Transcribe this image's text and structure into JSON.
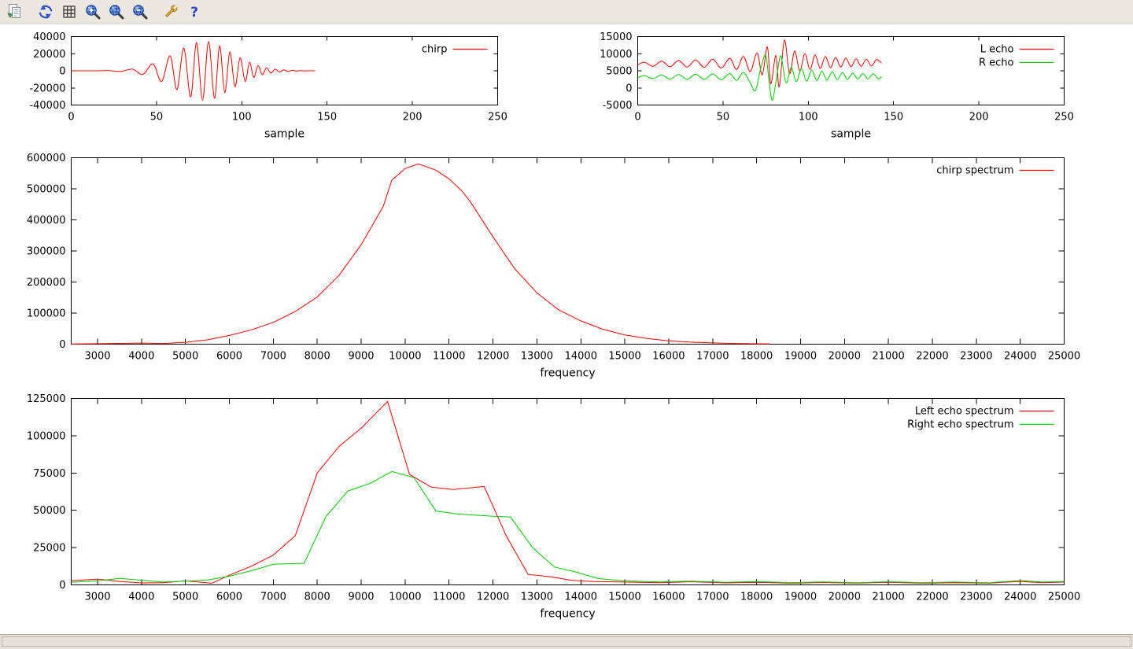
{
  "toolbar": {
    "help_glyph": "?",
    "buttons": [
      {
        "name": "copy-to-clipboard"
      },
      {
        "name": "replot"
      },
      {
        "name": "toggle-grid"
      },
      {
        "name": "zoom-in"
      },
      {
        "name": "zoom-reset"
      },
      {
        "name": "zoom-out"
      },
      {
        "name": "configure"
      },
      {
        "name": "help"
      }
    ]
  },
  "statusbar": {
    "text": ""
  },
  "chart_data": [
    {
      "type": "line",
      "xlabel": "sample",
      "xlim": [
        0,
        250
      ],
      "ylim": [
        -40000,
        40000
      ],
      "xticks": [
        0,
        50,
        100,
        150,
        200,
        250
      ],
      "yticks": [
        -40000,
        -20000,
        0,
        20000,
        40000
      ],
      "grid": false,
      "legend_position": "top-right-inside",
      "series": [
        {
          "name": "chirp",
          "color": "#ff0000",
          "smooth": true,
          "points": [
            [
              0,
              0
            ],
            [
              15,
              0
            ],
            [
              22,
              250
            ],
            [
              29,
              -700
            ],
            [
              36,
              1900
            ],
            [
              42,
              -4200
            ],
            [
              48,
              8000
            ],
            [
              53,
              -12500
            ],
            [
              58,
              17500
            ],
            [
              62,
              -22000
            ],
            [
              66,
              26500
            ],
            [
              70,
              -30500
            ],
            [
              73.5,
              33000
            ],
            [
              77,
              -34500
            ],
            [
              80.5,
              34000
            ],
            [
              84,
              -32000
            ],
            [
              87,
              29000
            ],
            [
              90,
              -25500
            ],
            [
              93,
              22000
            ],
            [
              96,
              -18500
            ],
            [
              99,
              15200
            ],
            [
              102,
              -12300
            ],
            [
              104.5,
              9800
            ],
            [
              107,
              -7700
            ],
            [
              109.5,
              6000
            ],
            [
              112,
              -4600
            ],
            [
              114.5,
              3500
            ],
            [
              117,
              -2600
            ],
            [
              119.5,
              1900
            ],
            [
              122,
              -1400
            ],
            [
              124.5,
              1000
            ],
            [
              127,
              -700
            ],
            [
              129.5,
              480
            ],
            [
              132,
              -320
            ],
            [
              134.5,
              210
            ],
            [
              137,
              -130
            ],
            [
              139.5,
              80
            ],
            [
              142,
              -40
            ],
            [
              143,
              0
            ]
          ]
        }
      ]
    },
    {
      "type": "line",
      "xlabel": "sample",
      "xlim": [
        0,
        250
      ],
      "ylim": [
        -5000,
        15000
      ],
      "xticks": [
        0,
        50,
        100,
        150,
        200,
        250
      ],
      "yticks": [
        -5000,
        0,
        5000,
        10000,
        15000
      ],
      "grid": false,
      "legend_position": "top-right-inside",
      "series": [
        {
          "name": "L echo",
          "color": "#ff0000",
          "smooth": true,
          "points": [
            [
              0,
              6800
            ],
            [
              4,
              7500
            ],
            [
              9,
              6300
            ],
            [
              14,
              7800
            ],
            [
              19,
              6200
            ],
            [
              24,
              8000
            ],
            [
              29,
              6100
            ],
            [
              34,
              8200
            ],
            [
              39,
              6000
            ],
            [
              44,
              8400
            ],
            [
              49,
              5800
            ],
            [
              54,
              8600
            ],
            [
              58,
              5400
            ],
            [
              62,
              9200
            ],
            [
              66,
              4800
            ],
            [
              70,
              10200
            ],
            [
              73,
              3800
            ],
            [
              76,
              12000
            ],
            [
              78,
              1200
            ],
            [
              81,
              9500
            ],
            [
              83,
              300
            ],
            [
              86,
              14000
            ],
            [
              89,
              4200
            ],
            [
              92,
              10800
            ],
            [
              95,
              5000
            ],
            [
              98,
              10000
            ],
            [
              101,
              5400
            ],
            [
              104,
              9600
            ],
            [
              107,
              5700
            ],
            [
              110,
              9200
            ],
            [
              113,
              5900
            ],
            [
              116,
              8900
            ],
            [
              119,
              6100
            ],
            [
              122,
              8700
            ],
            [
              125,
              6200
            ],
            [
              128,
              8500
            ],
            [
              131,
              6300
            ],
            [
              134,
              8400
            ],
            [
              137,
              6400
            ],
            [
              140,
              8300
            ],
            [
              143,
              7200
            ]
          ]
        },
        {
          "name": "R echo",
          "color": "#00cc00",
          "smooth": true,
          "points": [
            [
              0,
              3000
            ],
            [
              4,
              3600
            ],
            [
              9,
              2700
            ],
            [
              14,
              3800
            ],
            [
              19,
              2600
            ],
            [
              24,
              3900
            ],
            [
              29,
              2500
            ],
            [
              34,
              4000
            ],
            [
              39,
              2500
            ],
            [
              44,
              4100
            ],
            [
              49,
              2400
            ],
            [
              54,
              4200
            ],
            [
              58,
              2200
            ],
            [
              62,
              4500
            ],
            [
              66,
              1500
            ],
            [
              69,
              -800
            ],
            [
              72,
              5500
            ],
            [
              75,
              9600
            ],
            [
              77,
              2000
            ],
            [
              79,
              -3600
            ],
            [
              82,
              5000
            ],
            [
              84,
              9300
            ],
            [
              87,
              1500
            ],
            [
              90,
              6000
            ],
            [
              93,
              1800
            ],
            [
              96,
              5600
            ],
            [
              99,
              2000
            ],
            [
              102,
              5200
            ],
            [
              105,
              2200
            ],
            [
              108,
              4900
            ],
            [
              111,
              2300
            ],
            [
              114,
              4700
            ],
            [
              117,
              2400
            ],
            [
              120,
              4500
            ],
            [
              123,
              2500
            ],
            [
              126,
              4300
            ],
            [
              129,
              2600
            ],
            [
              132,
              4200
            ],
            [
              135,
              2650
            ],
            [
              138,
              4100
            ],
            [
              141,
              2700
            ],
            [
              143,
              3300
            ]
          ]
        }
      ]
    },
    {
      "type": "line",
      "xlabel": "frequency",
      "xlim": [
        2400,
        25000
      ],
      "ylim": [
        0,
        600000
      ],
      "xticks": [
        3000,
        4000,
        5000,
        6000,
        7000,
        8000,
        9000,
        10000,
        11000,
        12000,
        13000,
        14000,
        15000,
        16000,
        17000,
        18000,
        19000,
        20000,
        21000,
        22000,
        23000,
        24000,
        25000
      ],
      "yticks": [
        0,
        100000,
        200000,
        300000,
        400000,
        500000,
        600000
      ],
      "grid": false,
      "legend_position": "top-right-inside",
      "series": [
        {
          "name": "chirp spectrum",
          "color": "#ff0000",
          "points": [
            [
              2400,
              700
            ],
            [
              3000,
              1500
            ],
            [
              3500,
              2600
            ],
            [
              4000,
              3600
            ],
            [
              4500,
              2400
            ],
            [
              5000,
              6000
            ],
            [
              5500,
              14000
            ],
            [
              6000,
              28000
            ],
            [
              6500,
              46000
            ],
            [
              7000,
              70000
            ],
            [
              7500,
              105000
            ],
            [
              8000,
              152000
            ],
            [
              8500,
              222000
            ],
            [
              9000,
              320000
            ],
            [
              9500,
              443000
            ],
            [
              9700,
              528000
            ],
            [
              10000,
              565000
            ],
            [
              10300,
              580000
            ],
            [
              10700,
              560000
            ],
            [
              11000,
              532000
            ],
            [
              11300,
              492000
            ],
            [
              11500,
              455000
            ],
            [
              12000,
              345000
            ],
            [
              12500,
              242000
            ],
            [
              13000,
              165000
            ],
            [
              13500,
              110000
            ],
            [
              14000,
              75000
            ],
            [
              14500,
              48000
            ],
            [
              15000,
              30000
            ],
            [
              15500,
              18500
            ],
            [
              16000,
              11000
            ],
            [
              16500,
              6500
            ],
            [
              17000,
              4000
            ],
            [
              17500,
              2300
            ],
            [
              18000,
              1300
            ],
            [
              18300,
              900
            ]
          ]
        }
      ]
    },
    {
      "type": "line",
      "xlabel": "frequency",
      "xlim": [
        2400,
        25000
      ],
      "ylim": [
        0,
        125000
      ],
      "xticks": [
        3000,
        4000,
        5000,
        6000,
        7000,
        8000,
        9000,
        10000,
        11000,
        12000,
        13000,
        14000,
        15000,
        16000,
        17000,
        18000,
        19000,
        20000,
        21000,
        22000,
        23000,
        24000,
        25000
      ],
      "yticks": [
        0,
        25000,
        50000,
        75000,
        100000,
        125000
      ],
      "grid": false,
      "legend_position": "top-right-inside",
      "series": [
        {
          "name": "Left echo spectrum",
          "color": "#ff0000",
          "points": [
            [
              2400,
              2800
            ],
            [
              3000,
              3900
            ],
            [
              3500,
              2300
            ],
            [
              4000,
              1300
            ],
            [
              4500,
              1500
            ],
            [
              5000,
              2700
            ],
            [
              5600,
              1100
            ],
            [
              6000,
              6500
            ],
            [
              6500,
              12500
            ],
            [
              7000,
              20000
            ],
            [
              7500,
              33000
            ],
            [
              8000,
              75000
            ],
            [
              8500,
              93000
            ],
            [
              9000,
              105000
            ],
            [
              9600,
              123000
            ],
            [
              10100,
              74000
            ],
            [
              10600,
              65500
            ],
            [
              11100,
              64000
            ],
            [
              11800,
              66000
            ],
            [
              12300,
              33000
            ],
            [
              12800,
              7000
            ],
            [
              13300,
              5500
            ],
            [
              13800,
              3000
            ],
            [
              14300,
              2200
            ],
            [
              15000,
              1900
            ],
            [
              15800,
              1500
            ],
            [
              16500,
              2100
            ],
            [
              17300,
              1300
            ],
            [
              18000,
              1700
            ],
            [
              18800,
              1100
            ],
            [
              19500,
              1600
            ],
            [
              20300,
              1200
            ],
            [
              21000,
              1700
            ],
            [
              21800,
              1100
            ],
            [
              22500,
              1500
            ],
            [
              23300,
              1200
            ],
            [
              24000,
              2300
            ],
            [
              24500,
              1500
            ],
            [
              25000,
              1900
            ]
          ]
        },
        {
          "name": "Right echo spectrum",
          "color": "#00cc00",
          "points": [
            [
              2400,
              1800
            ],
            [
              3000,
              2700
            ],
            [
              3500,
              4300
            ],
            [
              4000,
              3100
            ],
            [
              4500,
              1900
            ],
            [
              5000,
              2500
            ],
            [
              5500,
              3300
            ],
            [
              6000,
              5800
            ],
            [
              6500,
              9500
            ],
            [
              7000,
              13800
            ],
            [
              7700,
              14500
            ],
            [
              8200,
              46000
            ],
            [
              8700,
              63000
            ],
            [
              9200,
              68000
            ],
            [
              9700,
              76000
            ],
            [
              10200,
              72000
            ],
            [
              10700,
              49500
            ],
            [
              11200,
              47500
            ],
            [
              12000,
              46000
            ],
            [
              12400,
              45500
            ],
            [
              12900,
              25000
            ],
            [
              13400,
              12000
            ],
            [
              13900,
              8500
            ],
            [
              14400,
              4200
            ],
            [
              15000,
              2700
            ],
            [
              15800,
              2000
            ],
            [
              16500,
              2500
            ],
            [
              17300,
              1700
            ],
            [
              18000,
              2200
            ],
            [
              18800,
              1500
            ],
            [
              19500,
              2000
            ],
            [
              20300,
              1500
            ],
            [
              21000,
              2100
            ],
            [
              21800,
              1400
            ],
            [
              22500,
              1900
            ],
            [
              23300,
              1500
            ],
            [
              24000,
              2900
            ],
            [
              24500,
              1900
            ],
            [
              25000,
              2300
            ]
          ]
        }
      ]
    }
  ]
}
